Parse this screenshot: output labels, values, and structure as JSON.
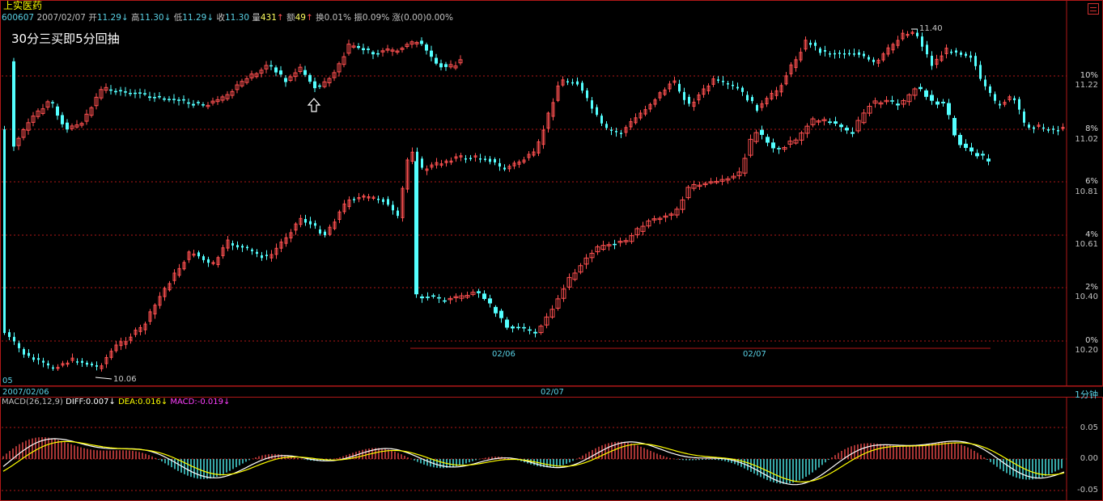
{
  "header": {
    "stock_name": "上实医药",
    "code": "600607",
    "date": "2007/02/07",
    "open_label": "开",
    "open": "11.29",
    "high_label": "高",
    "high": "11.30",
    "low_label": "低",
    "low": "11.29",
    "close_label": "收",
    "close": "11.30",
    "volume_label": "量",
    "volume": "431",
    "amount_label": "额",
    "amount": "49",
    "turnover_label": "换",
    "turnover": "0.01%",
    "amplitude_label": "振",
    "amplitude": "0.09%",
    "change_label": "涨",
    "change": "(0.00)0.00%"
  },
  "annotation": "30分三买即5分回抽",
  "price_axis": {
    "labels": [
      {
        "pct": "10%",
        "price": "11.22"
      },
      {
        "pct": "8%",
        "price": "11.02"
      },
      {
        "pct": "6%",
        "price": "10.81"
      },
      {
        "pct": "4%",
        "price": "10.61"
      },
      {
        "pct": "2%",
        "price": "10.40"
      },
      {
        "pct": "0%",
        "price": "10.20"
      }
    ],
    "peak_label": "11.40",
    "low_label": "10.06"
  },
  "left_small": "05",
  "bottom_bar": {
    "left_date": "2007/02/06",
    "center_date": "02/07",
    "period": "1分钟"
  },
  "inner_x_labels": [
    "02/06",
    "02/07"
  ],
  "macd": {
    "params": "MACD(26,12,9)",
    "diff_label": "DIFF:",
    "diff": "0.007",
    "dea_label": "DEA:",
    "dea": "0.016",
    "macd_label": "MACD:",
    "macd": "-0.019",
    "y_labels": [
      "0.05",
      "0.00",
      "-0.05"
    ]
  },
  "colors": {
    "up": "#ff5050",
    "down": "#54ffff",
    "grid": "#b01818",
    "diff_line": "#ffffff",
    "dea_line": "#ffff00",
    "macd_text": "#ff40ff"
  }
}
